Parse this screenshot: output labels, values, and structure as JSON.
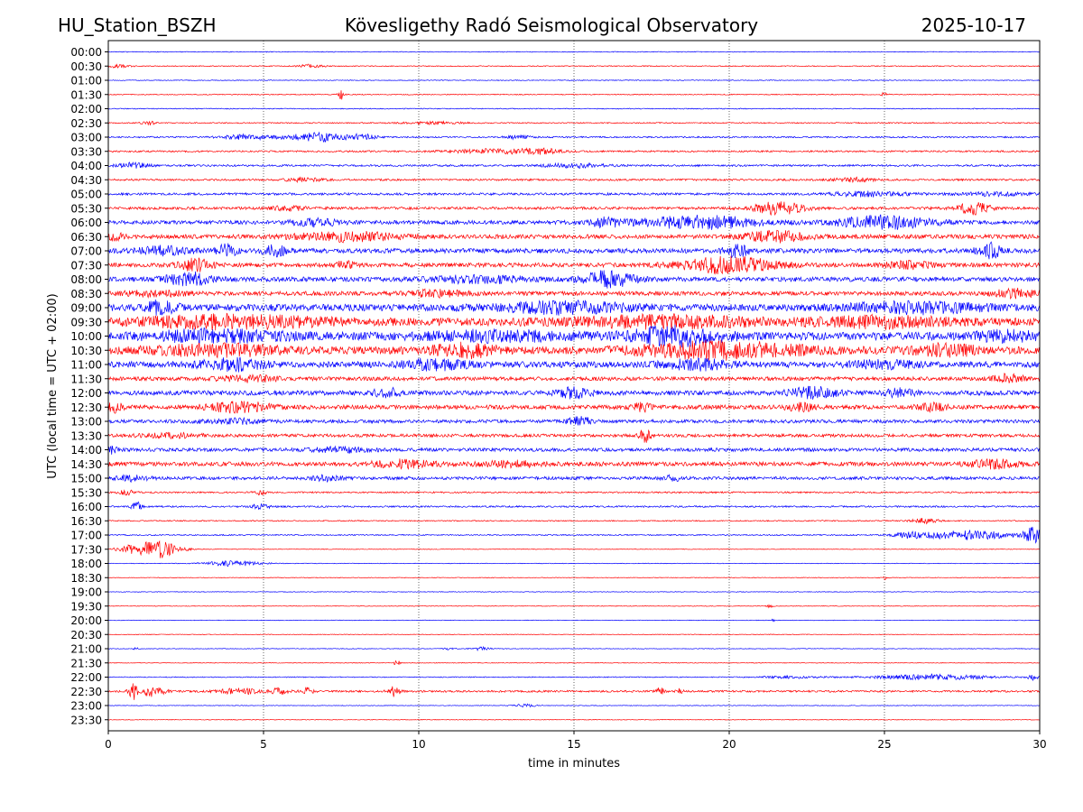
{
  "chart_data": {
    "type": "line",
    "title_left": "HU_Station_BSZH",
    "title_center": "Kövesligethy Radó Seismological Observatory",
    "title_right": "2025-10-17",
    "xlabel": "time in minutes",
    "ylabel": "UTC (local time = UTC + 02:00)",
    "xlim": [
      0,
      30
    ],
    "x_ticks": [
      "0",
      "5",
      "10",
      "15",
      "20",
      "25",
      "30"
    ],
    "x_tick_values": [
      0,
      5,
      10,
      15,
      20,
      25,
      30
    ],
    "grid": "vertical dotted",
    "colors": [
      "#0000ff",
      "#ff0000"
    ],
    "traces": [
      {
        "label": "00:00",
        "noise": 0.1,
        "events": []
      },
      {
        "label": "00:30",
        "noise": 0.12,
        "events": [
          [
            0.3,
            0.4,
            0.4
          ],
          [
            6.5,
            0.4,
            0.4
          ]
        ]
      },
      {
        "label": "01:00",
        "noise": 0.1,
        "events": []
      },
      {
        "label": "01:30",
        "noise": 0.12,
        "events": [
          [
            7.5,
            0.1,
            1.4
          ],
          [
            25.0,
            0.1,
            0.6
          ]
        ]
      },
      {
        "label": "02:00",
        "noise": 0.12,
        "events": []
      },
      {
        "label": "02:30",
        "noise": 0.15,
        "events": [
          [
            1.3,
            0.2,
            0.5
          ],
          [
            10.5,
            1.0,
            0.3
          ]
        ]
      },
      {
        "label": "03:00",
        "noise": 0.2,
        "events": [
          [
            4.5,
            0.8,
            0.6
          ],
          [
            6.8,
            1.0,
            1.1
          ],
          [
            8.2,
            0.4,
            0.6
          ],
          [
            13.2,
            0.4,
            0.5
          ]
        ]
      },
      {
        "label": "03:30",
        "noise": 0.22,
        "events": [
          [
            12.5,
            1.5,
            0.6
          ],
          [
            14.0,
            0.6,
            0.5
          ]
        ]
      },
      {
        "label": "04:00",
        "noise": 0.25,
        "events": [
          [
            0.8,
            0.5,
            0.7
          ],
          [
            15.0,
            1.0,
            0.5
          ]
        ]
      },
      {
        "label": "04:30",
        "noise": 0.25,
        "events": [
          [
            6.3,
            0.6,
            0.5
          ],
          [
            24.0,
            0.6,
            0.5
          ]
        ]
      },
      {
        "label": "05:00",
        "noise": 0.3,
        "events": [
          [
            24.5,
            1.2,
            0.6
          ],
          [
            28.5,
            1.0,
            0.4
          ]
        ]
      },
      {
        "label": "05:30",
        "noise": 0.35,
        "events": [
          [
            21.6,
            0.8,
            1.6
          ],
          [
            27.9,
            0.5,
            1.6
          ],
          [
            5.8,
            0.6,
            0.5
          ]
        ]
      },
      {
        "label": "06:00",
        "noise": 0.5,
        "events": [
          [
            19.0,
            2.0,
            1.6
          ],
          [
            25.0,
            1.5,
            1.6
          ],
          [
            16.0,
            0.5,
            1.0
          ],
          [
            6.7,
            0.8,
            0.9
          ]
        ]
      },
      {
        "label": "06:30",
        "noise": 0.55,
        "events": [
          [
            7.7,
            1.6,
            1.1
          ],
          [
            21.5,
            1.0,
            1.3
          ],
          [
            0.2,
            0.3,
            0.8
          ]
        ]
      },
      {
        "label": "07:00",
        "noise": 0.6,
        "events": [
          [
            3.8,
            0.3,
            1.8
          ],
          [
            5.4,
            0.4,
            1.4
          ],
          [
            20.2,
            0.4,
            1.6
          ],
          [
            28.4,
            0.4,
            1.8
          ],
          [
            1.8,
            0.8,
            1.0
          ]
        ]
      },
      {
        "label": "07:30",
        "noise": 0.55,
        "events": [
          [
            20.0,
            1.5,
            2.0
          ],
          [
            2.8,
            0.5,
            1.6
          ],
          [
            7.6,
            0.3,
            0.8
          ],
          [
            25.8,
            0.8,
            0.8
          ]
        ]
      },
      {
        "label": "08:00",
        "noise": 0.6,
        "events": [
          [
            16.1,
            0.8,
            2.0
          ],
          [
            2.6,
            0.7,
            1.6
          ],
          [
            12.0,
            1.5,
            0.8
          ]
        ]
      },
      {
        "label": "08:30",
        "noise": 0.55,
        "events": [
          [
            29.2,
            0.6,
            1.2
          ],
          [
            10.5,
            1.0,
            0.7
          ],
          [
            1.5,
            1.0,
            0.6
          ]
        ]
      },
      {
        "label": "09:00",
        "noise": 0.9,
        "events": [
          [
            1.7,
            0.5,
            1.5
          ],
          [
            14.8,
            2.0,
            1.2
          ],
          [
            26.0,
            2.0,
            1.2
          ]
        ]
      },
      {
        "label": "09:30",
        "noise": 1.0,
        "events": [
          [
            4.0,
            3.0,
            1.3
          ],
          [
            18.0,
            3.0,
            1.2
          ],
          [
            25.0,
            2.0,
            1.1
          ]
        ]
      },
      {
        "label": "10:00",
        "noise": 1.05,
        "events": [
          [
            18.3,
            1.5,
            2.0
          ],
          [
            3.5,
            2.0,
            1.2
          ],
          [
            12.5,
            2.0,
            1.0
          ],
          [
            29.0,
            1.0,
            1.0
          ]
        ]
      },
      {
        "label": "10:30",
        "noise": 1.0,
        "events": [
          [
            19.7,
            2.5,
            1.8
          ],
          [
            11.5,
            1.0,
            1.4
          ],
          [
            3.5,
            2.0,
            1.1
          ],
          [
            27.0,
            1.0,
            1.1
          ]
        ]
      },
      {
        "label": "11:00",
        "noise": 0.8,
        "events": [
          [
            4.0,
            1.0,
            1.3
          ],
          [
            10.5,
            1.0,
            1.2
          ],
          [
            19.0,
            1.0,
            1.1
          ],
          [
            25.0,
            1.0,
            0.8
          ]
        ]
      },
      {
        "label": "11:30",
        "noise": 0.5,
        "events": [
          [
            29.0,
            0.5,
            1.0
          ],
          [
            4.5,
            1.0,
            0.7
          ]
        ]
      },
      {
        "label": "12:00",
        "noise": 0.6,
        "events": [
          [
            22.7,
            0.8,
            1.3
          ],
          [
            15.0,
            0.5,
            1.2
          ],
          [
            9.0,
            0.5,
            1.0
          ],
          [
            25.5,
            0.5,
            0.9
          ]
        ]
      },
      {
        "label": "12:30",
        "noise": 0.55,
        "events": [
          [
            4.2,
            1.0,
            1.3
          ],
          [
            0.2,
            0.3,
            1.2
          ],
          [
            17.2,
            0.3,
            1.0
          ],
          [
            22.3,
            0.5,
            0.9
          ],
          [
            26.5,
            0.5,
            0.8
          ]
        ]
      },
      {
        "label": "13:00",
        "noise": 0.45,
        "events": [
          [
            15.2,
            0.4,
            1.0
          ],
          [
            4.0,
            1.0,
            0.6
          ]
        ]
      },
      {
        "label": "13:30",
        "noise": 0.4,
        "events": [
          [
            17.3,
            0.2,
            1.8
          ],
          [
            2.0,
            1.0,
            0.5
          ]
        ]
      },
      {
        "label": "14:00",
        "noise": 0.45,
        "events": [
          [
            0.1,
            0.2,
            1.0
          ],
          [
            7.5,
            1.0,
            0.6
          ]
        ]
      },
      {
        "label": "14:30",
        "noise": 0.55,
        "events": [
          [
            9.5,
            1.0,
            0.9
          ],
          [
            28.5,
            0.8,
            1.0
          ],
          [
            13.0,
            1.0,
            0.6
          ]
        ]
      },
      {
        "label": "15:00",
        "noise": 0.4,
        "events": [
          [
            0.8,
            0.5,
            0.8
          ],
          [
            7.0,
            0.5,
            0.6
          ],
          [
            18.2,
            0.3,
            0.7
          ]
        ]
      },
      {
        "label": "15:30",
        "noise": 0.2,
        "events": [
          [
            0.6,
            0.3,
            0.6
          ],
          [
            4.9,
            0.2,
            0.7
          ]
        ]
      },
      {
        "label": "16:00",
        "noise": 0.22,
        "events": [
          [
            0.9,
            0.15,
            1.3
          ],
          [
            4.9,
            0.3,
            0.6
          ]
        ]
      },
      {
        "label": "16:30",
        "noise": 0.15,
        "events": [
          [
            26.3,
            0.4,
            0.7
          ]
        ]
      },
      {
        "label": "17:00",
        "noise": 0.15,
        "events": [
          [
            27.7,
            1.6,
            1.2
          ],
          [
            29.8,
            0.3,
            1.8
          ],
          [
            25.8,
            0.5,
            0.6
          ]
        ]
      },
      {
        "label": "17:30",
        "noise": 0.08,
        "events": [
          [
            1.1,
            0.7,
            1.7
          ],
          [
            1.8,
            0.4,
            1.6
          ],
          [
            2.5,
            0.2,
            0.4
          ]
        ]
      },
      {
        "label": "18:00",
        "noise": 0.08,
        "events": [
          [
            4.0,
            0.9,
            0.7
          ]
        ]
      },
      {
        "label": "18:30",
        "noise": 0.08,
        "events": [
          [
            25.0,
            0.1,
            0.5
          ]
        ]
      },
      {
        "label": "19:00",
        "noise": 0.08,
        "events": []
      },
      {
        "label": "19:30",
        "noise": 0.08,
        "events": [
          [
            21.3,
            0.1,
            0.4
          ]
        ]
      },
      {
        "label": "20:00",
        "noise": 0.08,
        "events": [
          [
            21.4,
            0.1,
            0.4
          ]
        ]
      },
      {
        "label": "20:30",
        "noise": 0.08,
        "events": []
      },
      {
        "label": "21:00",
        "noise": 0.08,
        "events": [
          [
            12.0,
            0.3,
            0.5
          ],
          [
            11.0,
            0.2,
            0.3
          ],
          [
            0.9,
            0.1,
            0.3
          ]
        ]
      },
      {
        "label": "21:30",
        "noise": 0.08,
        "events": [
          [
            9.3,
            0.1,
            0.8
          ]
        ]
      },
      {
        "label": "22:00",
        "noise": 0.12,
        "events": [
          [
            26.5,
            1.8,
            0.7
          ],
          [
            22.0,
            1.0,
            0.3
          ],
          [
            29.8,
            0.2,
            0.8
          ]
        ]
      },
      {
        "label": "22:30",
        "noise": 0.25,
        "events": [
          [
            0.8,
            0.15,
            2.0
          ],
          [
            1.4,
            0.4,
            1.3
          ],
          [
            4.2,
            0.6,
            0.8
          ],
          [
            6.4,
            0.2,
            0.9
          ],
          [
            9.2,
            0.2,
            1.4
          ],
          [
            17.8,
            0.15,
            1.0
          ],
          [
            18.4,
            0.1,
            0.8
          ],
          [
            5.5,
            0.3,
            0.7
          ]
        ]
      },
      {
        "label": "23:00",
        "noise": 0.08,
        "events": [
          [
            13.4,
            0.4,
            0.4
          ]
        ]
      },
      {
        "label": "23:30",
        "noise": 0.08,
        "events": []
      }
    ]
  }
}
